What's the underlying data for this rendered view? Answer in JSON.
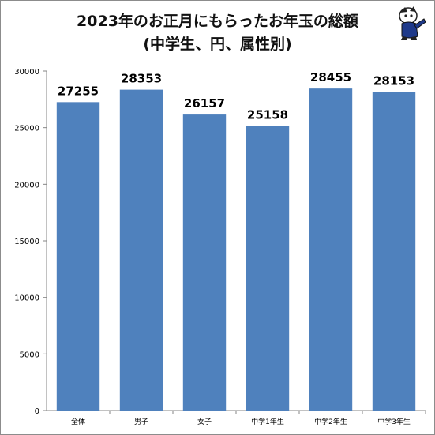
{
  "chart_data": {
    "type": "bar",
    "title": "2023年のお正月にもらったお年玉の総額",
    "subtitle": "(中学生、円、属性別)",
    "categories": [
      "全体",
      "男子",
      "女子",
      "中学1年生",
      "中学2年生",
      "中学3年生"
    ],
    "values": [
      27255,
      28353,
      26157,
      25158,
      28455,
      28153
    ],
    "ylim": [
      0,
      30000
    ],
    "yticks": [
      0,
      5000,
      10000,
      15000,
      20000,
      25000,
      30000
    ],
    "grid": false,
    "bar_color": "#4f81bd"
  }
}
